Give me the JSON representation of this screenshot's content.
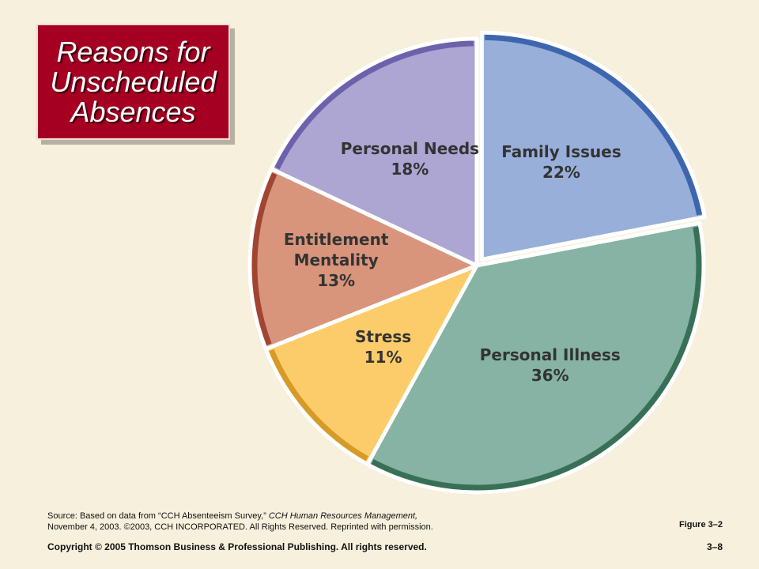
{
  "slide": {
    "title": "Reasons for\nUnscheduled\nAbsences",
    "source_prefix": "Source: Based on data from “CCH Absenteeism Survey,” ",
    "source_italic": "CCH Human Resources Management,",
    "source_line2": "November 4, 2003. ©2003, CCH INCORPORATED.  All Rights Reserved. Reprinted with permission.",
    "figure": "Figure 3–2",
    "copyright": "Copyright © 2005 Thomson Business & Professional Publishing. All rights reserved.",
    "page": "3–8"
  },
  "chart_data": {
    "type": "pie",
    "title": "Reasons for Unscheduled Absences",
    "slices": [
      {
        "label": [
          "Family Issues"
        ],
        "value": 22,
        "value_label": "22%",
        "fill": "#98afd9",
        "border": "#1f4ea0",
        "explode": true
      },
      {
        "label": [
          "Personal Illness"
        ],
        "value": 36,
        "value_label": "36%",
        "fill": "#86b3a3",
        "border": "#1d5a3e",
        "explode": false
      },
      {
        "label": [
          "Stress"
        ],
        "value": 11,
        "value_label": "11%",
        "fill": "#fdcc6a",
        "border": "#c88a10",
        "explode": false
      },
      {
        "label": [
          "Entitlement",
          "Mentality"
        ],
        "value": 13,
        "value_label": "13%",
        "fill": "#d8957c",
        "border": "#8f2a18",
        "explode": false
      },
      {
        "label": [
          "Personal Needs"
        ],
        "value": 18,
        "value_label": "18%",
        "fill": "#ada5d2",
        "border": "#5a4b9e",
        "explode": false
      }
    ],
    "start_angle_deg": 0,
    "direction": "clockwise"
  }
}
